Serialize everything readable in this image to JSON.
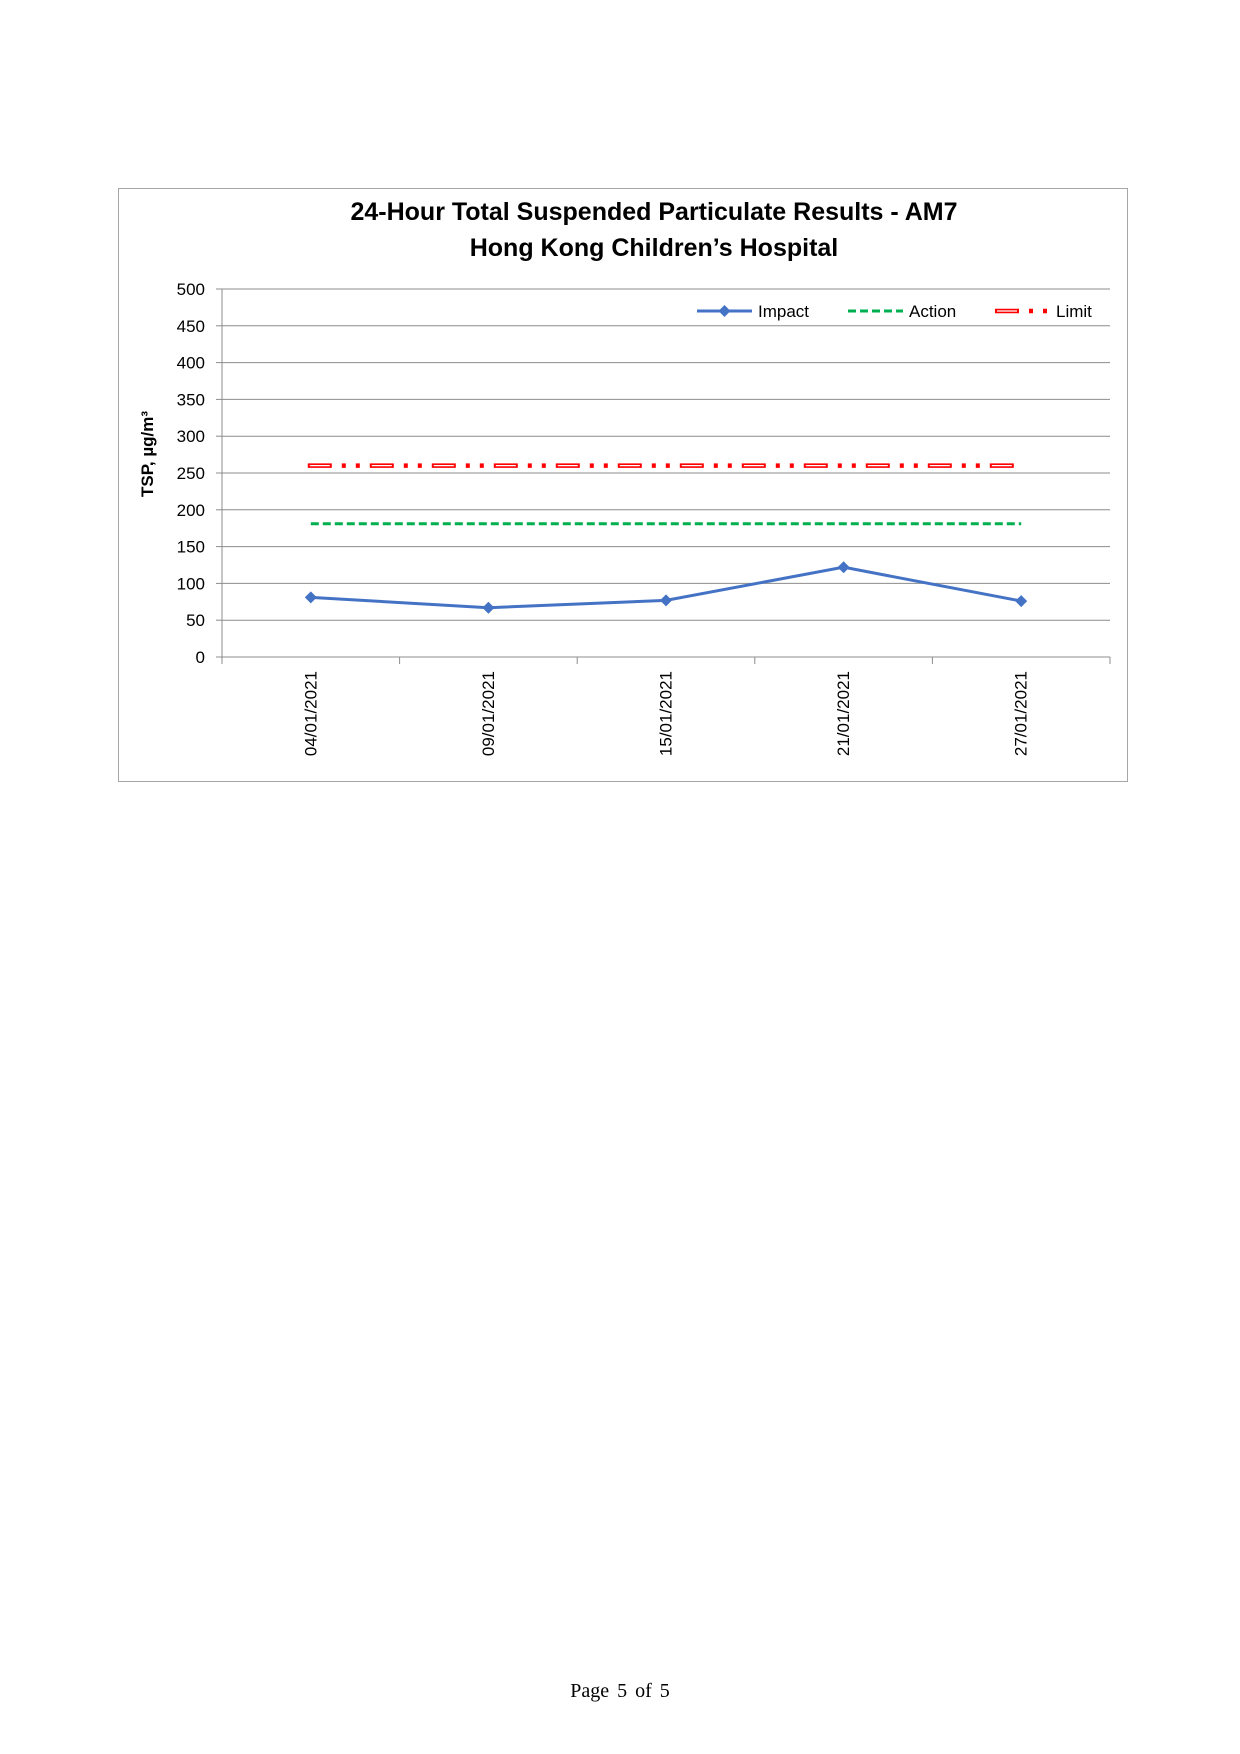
{
  "chart_data": {
    "type": "line",
    "title": "24-Hour Total Suspended Particulate Results - AM7",
    "subtitle": "Hong Kong Children’s Hospital",
    "ylabel": "TSP, µg/m³",
    "xlabel": "",
    "ylim": [
      0,
      500
    ],
    "yticks": [
      0,
      50,
      100,
      150,
      200,
      250,
      300,
      350,
      400,
      450,
      500
    ],
    "categories": [
      "04/01/2021",
      "09/01/2021",
      "15/01/2021",
      "21/01/2021",
      "27/01/2021"
    ],
    "grid": true,
    "legend_position": "top-right",
    "series": [
      {
        "name": "Impact",
        "values": [
          81,
          67,
          77,
          122,
          76
        ],
        "color": "#4472c4",
        "style": "solid-diamond"
      },
      {
        "name": "Action",
        "values": [
          181,
          181,
          181,
          181,
          181
        ],
        "color": "#00b050",
        "style": "dashed"
      },
      {
        "name": "Limit",
        "values": [
          260,
          260,
          260,
          260,
          260
        ],
        "color": "#ff0000",
        "style": "dash-dot-dot"
      }
    ]
  },
  "footer": {
    "page_word": "Page",
    "page_num": "5",
    "of_word": "of",
    "page_total": "5"
  }
}
